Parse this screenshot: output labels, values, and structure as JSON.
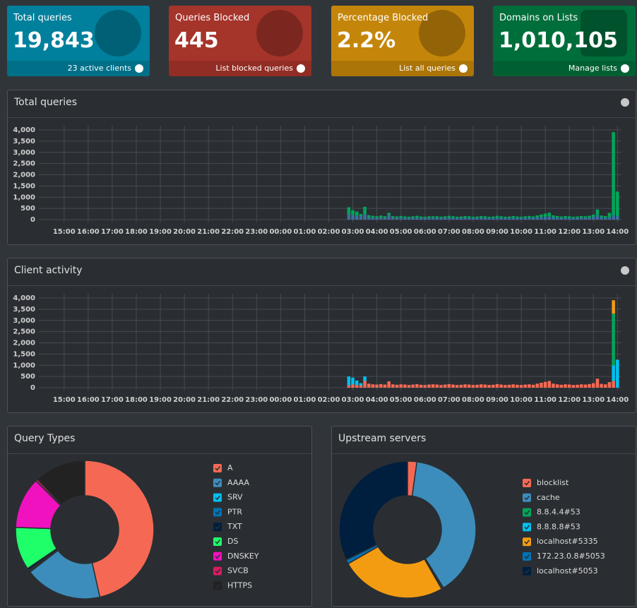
{
  "stats": [
    {
      "label": "Total queries",
      "value": "19,843",
      "link": "23 active clients",
      "color": "#00809d"
    },
    {
      "label": "Queries Blocked",
      "value": "445",
      "link": "List blocked queries",
      "color": "#a5342a"
    },
    {
      "label": "Percentage Blocked",
      "value": "2.2%",
      "link": "List all queries",
      "color": "#c4860a"
    },
    {
      "label": "Domains on Lists",
      "value": "1,010,105",
      "link": "Manage lists",
      "color": "#006e3b"
    }
  ],
  "chart_data": [
    {
      "type": "bar",
      "title": "Total queries",
      "stacked": true,
      "grid": true,
      "xlim": [
        -63,
        1390
      ],
      "xticks": [
        {
          "value": 0,
          "label": "15:00"
        },
        {
          "value": 60,
          "label": "16:00"
        },
        {
          "value": 120,
          "label": "17:00"
        },
        {
          "value": 180,
          "label": "18:00"
        },
        {
          "value": 240,
          "label": "19:00"
        },
        {
          "value": 300,
          "label": "20:00"
        },
        {
          "value": 360,
          "label": "21:00"
        },
        {
          "value": 420,
          "label": "22:00"
        },
        {
          "value": 480,
          "label": "23:00"
        },
        {
          "value": 540,
          "label": "00:00"
        },
        {
          "value": 600,
          "label": "01:00"
        },
        {
          "value": 660,
          "label": "02:00"
        },
        {
          "value": 720,
          "label": "03:00"
        },
        {
          "value": 780,
          "label": "04:00"
        },
        {
          "value": 840,
          "label": "05:00"
        },
        {
          "value": 900,
          "label": "06:00"
        },
        {
          "value": 960,
          "label": "07:00"
        },
        {
          "value": 1020,
          "label": "08:00"
        },
        {
          "value": 1080,
          "label": "09:00"
        },
        {
          "value": 1140,
          "label": "10:00"
        },
        {
          "value": 1200,
          "label": "11:00"
        },
        {
          "value": 1260,
          "label": "12:00"
        },
        {
          "value": 1320,
          "label": "13:00"
        },
        {
          "value": 1380,
          "label": "14:00"
        }
      ],
      "ylim": [
        0,
        4000
      ],
      "yticks": [
        0,
        500,
        {
          "value": 1000,
          "label": "1,000"
        },
        {
          "value": 1500,
          "label": "1,500"
        },
        {
          "value": 2000,
          "label": "2,000"
        },
        {
          "value": 2500,
          "label": "2,500"
        },
        {
          "value": 3000,
          "label": "3,000"
        },
        {
          "value": 3500,
          "label": "3,500"
        },
        {
          "value": 4000,
          "label": "4,000"
        }
      ],
      "x": [
        710,
        720,
        730,
        740,
        750,
        760,
        770,
        780,
        790,
        800,
        810,
        820,
        830,
        840,
        850,
        860,
        870,
        880,
        890,
        900,
        910,
        920,
        930,
        940,
        950,
        960,
        970,
        980,
        990,
        1000,
        1010,
        1020,
        1030,
        1040,
        1050,
        1060,
        1070,
        1080,
        1090,
        1100,
        1110,
        1120,
        1130,
        1140,
        1150,
        1160,
        1170,
        1180,
        1190,
        1200,
        1210,
        1220,
        1230,
        1240,
        1250,
        1260,
        1270,
        1280,
        1290,
        1300,
        1310,
        1320,
        1330,
        1340,
        1350,
        1360,
        1370,
        1380
      ],
      "series": [
        {
          "color": "#3c6fa0",
          "values": [
            250,
            200,
            180,
            150,
            250,
            100,
            90,
            80,
            90,
            80,
            220,
            90,
            80,
            90,
            80,
            70,
            80,
            90,
            80,
            70,
            80,
            90,
            80,
            70,
            80,
            90,
            80,
            70,
            80,
            90,
            80,
            70,
            80,
            90,
            80,
            70,
            80,
            90,
            80,
            70,
            80,
            90,
            80,
            70,
            80,
            90,
            80,
            100,
            120,
            130,
            150,
            100,
            90,
            80,
            90,
            80,
            70,
            80,
            90,
            80,
            90,
            120,
            200,
            100,
            90,
            100,
            200,
            150
          ]
        },
        {
          "color": "#00a65a",
          "values": [
            300,
            220,
            180,
            100,
            320,
            100,
            80,
            70,
            90,
            70,
            80,
            70,
            60,
            70,
            60,
            60,
            70,
            80,
            60,
            60,
            70,
            60,
            70,
            60,
            70,
            80,
            70,
            60,
            60,
            70,
            70,
            60,
            60,
            70,
            70,
            60,
            60,
            80,
            70,
            60,
            60,
            70,
            60,
            60,
            70,
            70,
            60,
            90,
            110,
            140,
            160,
            90,
            70,
            60,
            70,
            70,
            60,
            60,
            70,
            70,
            80,
            100,
            250,
            80,
            70,
            200,
            3700,
            1100
          ]
        }
      ]
    },
    {
      "type": "bar",
      "title": "Client activity",
      "stacked": true,
      "grid": true,
      "xlim": [
        -63,
        1390
      ],
      "xticks": [
        {
          "value": 0,
          "label": "15:00"
        },
        {
          "value": 60,
          "label": "16:00"
        },
        {
          "value": 120,
          "label": "17:00"
        },
        {
          "value": 180,
          "label": "18:00"
        },
        {
          "value": 240,
          "label": "19:00"
        },
        {
          "value": 300,
          "label": "20:00"
        },
        {
          "value": 360,
          "label": "21:00"
        },
        {
          "value": 420,
          "label": "22:00"
        },
        {
          "value": 480,
          "label": "23:00"
        },
        {
          "value": 540,
          "label": "00:00"
        },
        {
          "value": 600,
          "label": "01:00"
        },
        {
          "value": 660,
          "label": "02:00"
        },
        {
          "value": 720,
          "label": "03:00"
        },
        {
          "value": 780,
          "label": "04:00"
        },
        {
          "value": 840,
          "label": "05:00"
        },
        {
          "value": 900,
          "label": "06:00"
        },
        {
          "value": 960,
          "label": "07:00"
        },
        {
          "value": 1020,
          "label": "08:00"
        },
        {
          "value": 1080,
          "label": "09:00"
        },
        {
          "value": 1140,
          "label": "10:00"
        },
        {
          "value": 1200,
          "label": "11:00"
        },
        {
          "value": 1260,
          "label": "12:00"
        },
        {
          "value": 1320,
          "label": "13:00"
        },
        {
          "value": 1380,
          "label": "14:00"
        }
      ],
      "ylim": [
        0,
        4000
      ],
      "yticks": [
        0,
        500,
        {
          "value": 1000,
          "label": "1,000"
        },
        {
          "value": 1500,
          "label": "1,500"
        },
        {
          "value": 2000,
          "label": "2,000"
        },
        {
          "value": 2500,
          "label": "2,500"
        },
        {
          "value": 3000,
          "label": "3,000"
        },
        {
          "value": 3500,
          "label": "3,500"
        },
        {
          "value": 4000,
          "label": "4,000"
        }
      ],
      "x": [
        710,
        720,
        730,
        740,
        750,
        760,
        770,
        780,
        790,
        800,
        810,
        820,
        830,
        840,
        850,
        860,
        870,
        880,
        890,
        900,
        910,
        920,
        930,
        940,
        950,
        960,
        970,
        980,
        990,
        1000,
        1010,
        1020,
        1030,
        1040,
        1050,
        1060,
        1070,
        1080,
        1090,
        1100,
        1110,
        1120,
        1130,
        1140,
        1150,
        1160,
        1170,
        1180,
        1190,
        1200,
        1210,
        1220,
        1230,
        1240,
        1250,
        1260,
        1270,
        1280,
        1290,
        1300,
        1310,
        1320,
        1330,
        1340,
        1350,
        1360,
        1370,
        1380
      ],
      "series": [
        {
          "color": "#f56954",
          "values": [
            100,
            150,
            120,
            100,
            300,
            180,
            150,
            140,
            160,
            140,
            280,
            150,
            130,
            150,
            140,
            120,
            140,
            160,
            130,
            120,
            140,
            150,
            140,
            120,
            140,
            160,
            140,
            120,
            130,
            150,
            140,
            120,
            130,
            150,
            140,
            120,
            130,
            160,
            140,
            120,
            130,
            150,
            130,
            120,
            140,
            150,
            130,
            180,
            220,
            260,
            300,
            180,
            150,
            130,
            150,
            140,
            120,
            130,
            150,
            140,
            160,
            200,
            400,
            170,
            150,
            250,
            300,
            0
          ]
        },
        {
          "color": "#00c0ef",
          "values": [
            400,
            300,
            200,
            100,
            200,
            0,
            0,
            0,
            0,
            0,
            0,
            0,
            0,
            0,
            0,
            0,
            0,
            0,
            0,
            0,
            0,
            0,
            0,
            0,
            0,
            0,
            0,
            0,
            0,
            0,
            0,
            0,
            0,
            0,
            0,
            0,
            0,
            0,
            0,
            0,
            0,
            0,
            0,
            0,
            0,
            0,
            0,
            0,
            0,
            0,
            0,
            0,
            0,
            0,
            0,
            0,
            0,
            0,
            0,
            0,
            0,
            0,
            0,
            0,
            0,
            0,
            700,
            1250
          ]
        },
        {
          "color": "#00a65a",
          "values": [
            0,
            0,
            0,
            0,
            0,
            0,
            0,
            0,
            0,
            0,
            0,
            0,
            0,
            0,
            0,
            0,
            0,
            0,
            0,
            0,
            0,
            0,
            0,
            0,
            0,
            0,
            0,
            0,
            0,
            0,
            0,
            0,
            0,
            0,
            0,
            0,
            0,
            0,
            0,
            0,
            0,
            0,
            0,
            0,
            0,
            0,
            0,
            0,
            0,
            0,
            0,
            0,
            0,
            0,
            0,
            0,
            0,
            0,
            0,
            0,
            0,
            0,
            0,
            0,
            0,
            0,
            2300,
            0
          ]
        },
        {
          "color": "#f39c12",
          "values": [
            0,
            0,
            0,
            0,
            0,
            0,
            0,
            0,
            0,
            0,
            0,
            0,
            0,
            0,
            0,
            0,
            0,
            0,
            0,
            0,
            0,
            0,
            0,
            0,
            0,
            0,
            0,
            0,
            0,
            0,
            0,
            0,
            0,
            0,
            0,
            0,
            0,
            0,
            0,
            0,
            0,
            0,
            0,
            0,
            0,
            0,
            0,
            0,
            0,
            0,
            0,
            0,
            0,
            0,
            0,
            0,
            0,
            0,
            0,
            0,
            0,
            0,
            0,
            0,
            0,
            0,
            600,
            0
          ]
        }
      ]
    },
    {
      "type": "pie",
      "title": "Query Types",
      "categories": [
        "A",
        "AAAA",
        "SRV",
        "PTR",
        "TXT",
        "DS",
        "DNSKEY",
        "SVCB",
        "HTTPS"
      ],
      "values": [
        46.5,
        18,
        0.2,
        0.3,
        0.5,
        10,
        12,
        0.5,
        12
      ],
      "colors": [
        "#f56954",
        "#3c8dbc",
        "#00c0ef",
        "#0073b7",
        "#001f3f",
        "#1eff6a",
        "#f012be",
        "#d81b60",
        "#222222"
      ]
    },
    {
      "type": "pie",
      "title": "Upstream servers",
      "categories": [
        "blocklist",
        "cache",
        "8.8.4.4#53",
        "8.8.8.8#53",
        "localhost#5335",
        "172.23.0.8#5053",
        "localhost#5053"
      ],
      "values": [
        2.2,
        39,
        0.2,
        0.3,
        25,
        1,
        32.3
      ],
      "colors": [
        "#f56954",
        "#3c8dbc",
        "#00a65a",
        "#00c0ef",
        "#f39c12",
        "#0073b7",
        "#001f3f"
      ]
    }
  ]
}
